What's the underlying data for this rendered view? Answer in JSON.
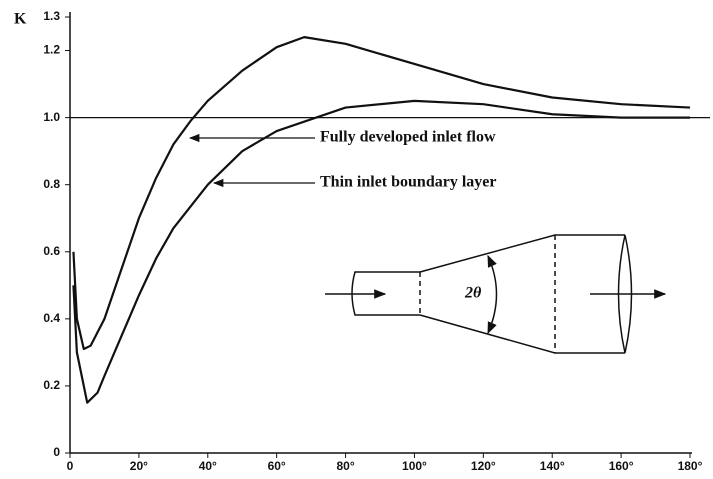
{
  "chart_data": {
    "type": "line",
    "y_label": "K",
    "xlim": [
      0,
      180
    ],
    "ylim": [
      0,
      1.3
    ],
    "xticks": [
      {
        "value": 0,
        "label": "0"
      },
      {
        "value": 20,
        "label": "20°"
      },
      {
        "value": 40,
        "label": "40°"
      },
      {
        "value": 60,
        "label": "60°"
      },
      {
        "value": 80,
        "label": "80°"
      },
      {
        "value": 100,
        "label": "100°"
      },
      {
        "value": 120,
        "label": "120°"
      },
      {
        "value": 140,
        "label": "140°"
      },
      {
        "value": 160,
        "label": "160°"
      },
      {
        "value": 180,
        "label": "180°"
      }
    ],
    "yticks": [
      0,
      0.2,
      0.4,
      0.6,
      0.8,
      {
        "value": 1,
        "label": "1.0"
      },
      1.2,
      1.3
    ],
    "reference_line": 1,
    "diagram_label": "2θ",
    "series": [
      {
        "name": "Fully developed inlet flow",
        "color": "#111111",
        "x": [
          1,
          2,
          4,
          6,
          10,
          15,
          20,
          25,
          30,
          35,
          40,
          50,
          60,
          68,
          80,
          100,
          120,
          140,
          160,
          180
        ],
        "values": [
          0.6,
          0.4,
          0.31,
          0.32,
          0.4,
          0.55,
          0.7,
          0.82,
          0.92,
          0.99,
          1.05,
          1.14,
          1.21,
          1.24,
          1.22,
          1.16,
          1.1,
          1.06,
          1.04,
          1.03
        ]
      },
      {
        "name": "Thin inlet boundary layer",
        "color": "#111111",
        "x": [
          1,
          2,
          5,
          8,
          10,
          15,
          20,
          25,
          30,
          40,
          50,
          60,
          80,
          100,
          120,
          140,
          160,
          180
        ],
        "values": [
          0.5,
          0.3,
          0.15,
          0.18,
          0.23,
          0.35,
          0.47,
          0.58,
          0.67,
          0.8,
          0.9,
          0.96,
          1.03,
          1.05,
          1.04,
          1.01,
          1.0,
          1.0
        ]
      }
    ]
  }
}
